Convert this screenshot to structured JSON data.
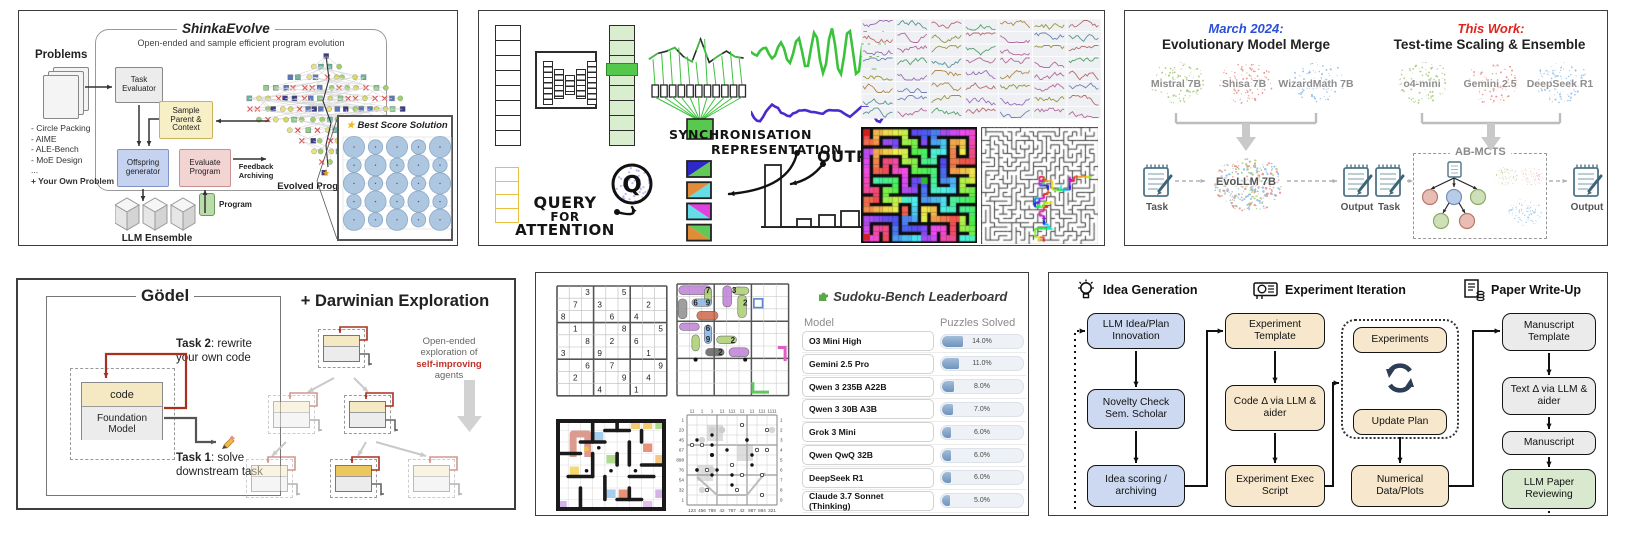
{
  "panels": {
    "shinka": {
      "title": "ShinkaEvolve",
      "subtitle": "Open-ended and sample efficient program evolution",
      "problems_label": "Problems",
      "problems": [
        "- Circle Packing",
        "- AIME",
        "- ALE-Bench",
        "- MoE Design",
        "...",
        "+ Your Own Problem"
      ],
      "task_evaluator": "Task Evaluator",
      "sample_parent": "Sample Parent & Context",
      "offspring": "Offspring generator",
      "evaluate": "Evaluate Program",
      "feedback": "Feedback Archiving",
      "program": "Program",
      "evolved": "Evolved Programs",
      "llm_ensemble": "LLM Ensemble",
      "best_score": "Best Score Solution"
    },
    "ctm": {
      "sync_line1": "SYNCHRONISATION",
      "sync_line2": "REPRESENTATION",
      "q": "Q",
      "query_lines": [
        "QUERY",
        "FOR",
        "ATTENTION"
      ],
      "output": "OUTPUT"
    },
    "abmcts": {
      "left_tag": "March 2024:",
      "left_title": "Evolutionary Model Merge",
      "right_tag": "This Work:",
      "right_title": "Test-time Scaling & Ensemble",
      "left_models": [
        "Mistral 7B",
        "Shisa 7B",
        "WizardMath 7B"
      ],
      "right_models": [
        "o4-mini",
        "Gemini 2.5",
        "DeepSeek R1"
      ],
      "merged_model": "EvoLLM 7B",
      "box_label": "AB-MCTS",
      "task_label": "Task",
      "output_label": "Output"
    },
    "godel": {
      "title": "Gödel",
      "darwin_title": "+ Darwinian Exploration",
      "code": "code",
      "foundation": "Foundation Model",
      "task2_bold": "Task 2",
      "task2_rest": ": rewrite your own code",
      "task1_bold": "Task 1",
      "task1_rest": ": solve downstream task",
      "note_line1": "Open-ended",
      "note_line2": "exploration of",
      "note_red": "self-improving",
      "note_line4": "agents"
    },
    "sudoku": {
      "title": "Sudoku-Bench Leaderboard",
      "col_model": "Model",
      "col_solved": "Puzzles Solved",
      "rows": [
        {
          "model": "O3 Mini High",
          "pct": "14.0%",
          "value": 14
        },
        {
          "model": "Gemini 2.5 Pro",
          "pct": "11.0%",
          "value": 11
        },
        {
          "model": "Qwen 3 235B A22B",
          "pct": "8.0%",
          "value": 8
        },
        {
          "model": "Qwen 3 30B A3B",
          "pct": "7.0%",
          "value": 7
        },
        {
          "model": "Grok 3 Mini",
          "pct": "6.0%",
          "value": 6
        },
        {
          "model": "Qwen QwQ 32B",
          "pct": "6.0%",
          "value": 6
        },
        {
          "model": "DeepSeek R1",
          "pct": "6.0%",
          "value": 6
        },
        {
          "model": "Claude 3.7 Sonnet (Thinking)",
          "pct": "5.0%",
          "value": 5
        }
      ],
      "grid": [
        "..3..5...",
        ".7.3...2.",
        "8...6.4..",
        ".1...8..5",
        "..8.2.6..",
        "3..9...1.",
        "..6.7...9",
        ".2...9.4.",
        "...4..1.."
      ],
      "variant_digits": [
        [
          2.5,
          0.5,
          "7"
        ],
        [
          4.6,
          0.5,
          "3"
        ],
        [
          1.5,
          1.5,
          "6"
        ],
        [
          2.5,
          1.5,
          "9"
        ],
        [
          5.5,
          1.5,
          "2"
        ],
        [
          2.5,
          3.55,
          "6"
        ],
        [
          2.5,
          4.45,
          "9"
        ],
        [
          4.5,
          4.5,
          "2"
        ],
        [
          3.5,
          5.5,
          "2"
        ]
      ],
      "kropki_top": [
        "11",
        "1",
        "1",
        "11",
        "111",
        "11",
        "11",
        "111",
        "1111"
      ],
      "kropki_left": [
        "1",
        "23",
        "45",
        "67",
        "898",
        "76",
        "54",
        "32",
        "1"
      ],
      "kropki_right": [
        "1",
        "2",
        "3",
        "4",
        "5",
        "6",
        "7",
        "8",
        "9"
      ],
      "kropki_bottom": [
        "123",
        "456",
        "789",
        "42",
        "787",
        "42",
        "987",
        "894",
        "321"
      ]
    },
    "scientist": {
      "sections": [
        "Idea Generation",
        "Experiment Iteration",
        "Paper Write-Up"
      ],
      "idea_boxes": [
        "LLM Idea/Plan Innovation",
        "Novelty Check Sem. Scholar",
        "Idea scoring / archiving"
      ],
      "exp_boxes": [
        "Experiment Template",
        "Code Δ via LLM & aider",
        "Experiment Exec Script"
      ],
      "loop_boxes": [
        "Experiments",
        "Update Plan"
      ],
      "numerical": "Numerical Data/Plots",
      "paper_boxes": [
        "Manuscript Template",
        "Text Δ via LLM & aider",
        "Manuscript",
        "LLM Paper Reviewing"
      ]
    }
  },
  "colors": {
    "accent_blue": "#2b50d8",
    "accent_red": "#e0261c",
    "brain_green": "#a9c97e",
    "brain_red": "#e89288",
    "brain_blue": "#90bce8",
    "bar_fill": "#7195bd"
  },
  "chart_data": {
    "type": "bar",
    "title": "Sudoku-Bench Leaderboard",
    "categories": [
      "O3 Mini High",
      "Gemini 2.5 Pro",
      "Qwen 3 235B A22B",
      "Qwen 3 30B A3B",
      "Grok 3 Mini",
      "Qwen QwQ 32B",
      "DeepSeek R1",
      "Claude 3.7 Sonnet (Thinking)"
    ],
    "values": [
      14.0,
      11.0,
      8.0,
      7.0,
      6.0,
      6.0,
      6.0,
      5.0
    ],
    "xlabel": "Model",
    "ylabel": "Puzzles Solved (%)",
    "ylim": [
      0,
      100
    ]
  }
}
